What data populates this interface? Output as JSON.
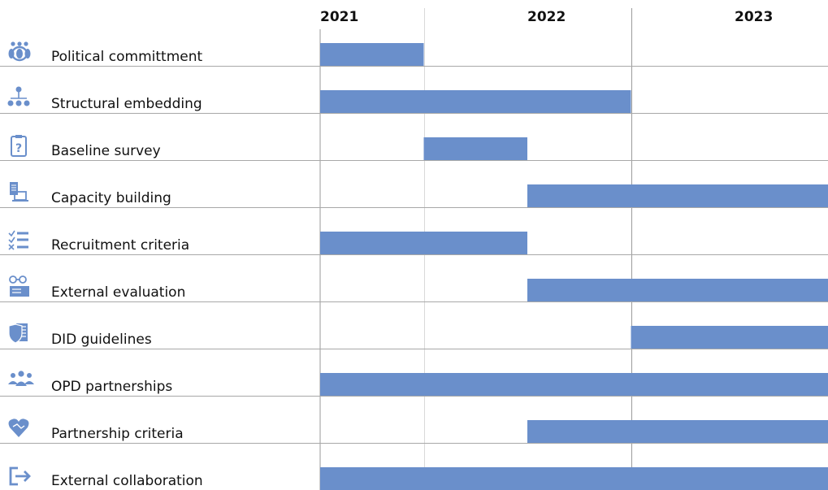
{
  "colors": {
    "bar": "#6a8fcb",
    "icon": "#6a8fcb",
    "grid_major": "#9a9a9a",
    "grid_minor": "#d9d9d9",
    "row_line": "#a8a8a8"
  },
  "chart_data": {
    "type": "gantt",
    "title": "",
    "xlabel": "",
    "ylabel": "",
    "x_axis": {
      "start": 2021.0,
      "end": 2023.95,
      "ticks": [
        "2021",
        "2022",
        "2023"
      ]
    },
    "tasks": [
      {
        "label": "Political committment",
        "icon": "people-circle-icon",
        "start": 2021.0,
        "end": 2021.5
      },
      {
        "label": "Structural embedding",
        "icon": "org-chart-icon",
        "start": 2021.0,
        "end": 2022.5
      },
      {
        "label": "Baseline survey",
        "icon": "clipboard-question-icon",
        "start": 2021.5,
        "end": 2022.0
      },
      {
        "label": "Capacity building",
        "icon": "document-laptop-icon",
        "start": 2022.0,
        "end": 2023.95
      },
      {
        "label": "Recruitment criteria",
        "icon": "checklist-icon",
        "start": 2021.0,
        "end": 2022.0
      },
      {
        "label": "External evaluation",
        "icon": "glasses-document-icon",
        "start": 2022.0,
        "end": 2023.95
      },
      {
        "label": "DID guidelines",
        "icon": "shield-document-icon",
        "start": 2022.5,
        "end": 2023.95
      },
      {
        "label": "OPD partnerships",
        "icon": "group-icon",
        "start": 2021.0,
        "end": 2023.95
      },
      {
        "label": "Partnership criteria",
        "icon": "heart-handshake-icon",
        "start": 2022.0,
        "end": 2023.5
      },
      {
        "label": "External collaboration",
        "icon": "exit-arrow-icon",
        "start": 2021.0,
        "end": 2023.95
      }
    ]
  }
}
